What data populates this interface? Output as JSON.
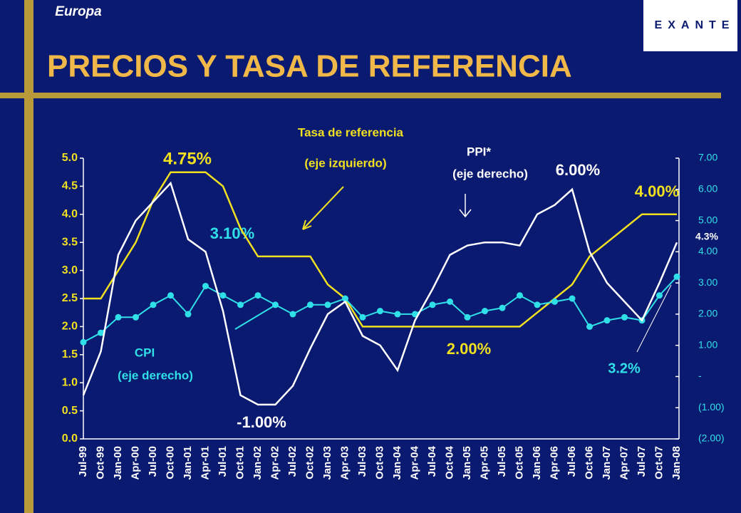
{
  "header": "Europa",
  "logo": "EXANTE",
  "chart_data": {
    "type": "line",
    "title": "PRECIOS Y TASA DE REFERENCIA",
    "categories": [
      "Jul-99",
      "Oct-99",
      "Jan-00",
      "Apr-00",
      "Jul-00",
      "Oct-00",
      "Jan-01",
      "Apr-01",
      "Jul-01",
      "Oct-01",
      "Jan-02",
      "Apr-02",
      "Jul-02",
      "Oct-02",
      "Jan-03",
      "Apr-03",
      "Jul-03",
      "Oct-03",
      "Jan-04",
      "Apr-04",
      "Jul-04",
      "Oct-04",
      "Jan-05",
      "Apr-05",
      "Jul-05",
      "Oct-05",
      "Jan-06",
      "Apr-06",
      "Jul-06",
      "Oct-06",
      "Jan-07",
      "Apr-07",
      "Jul-07",
      "Oct-07",
      "Jan-08"
    ],
    "series": [
      {
        "name": "Tasa de referencia",
        "color": "#f0e020",
        "axis": "y",
        "values": [
          2.5,
          2.5,
          3.0,
          3.5,
          4.25,
          4.75,
          4.75,
          4.75,
          4.5,
          3.75,
          3.25,
          3.25,
          3.25,
          3.25,
          2.75,
          2.5,
          2.0,
          2.0,
          2.0,
          2.0,
          2.0,
          2.0,
          2.0,
          2.0,
          2.0,
          2.0,
          2.25,
          2.5,
          2.75,
          3.25,
          3.5,
          3.75,
          4.0,
          4.0,
          4.0
        ]
      },
      {
        "name": "CPI",
        "color": "#30e0e8",
        "axis": "y2",
        "values": [
          1.1,
          1.4,
          1.9,
          1.9,
          2.3,
          2.6,
          2.0,
          2.9,
          2.6,
          2.3,
          2.6,
          2.3,
          2.0,
          2.3,
          2.3,
          2.5,
          1.9,
          2.1,
          2.0,
          2.0,
          2.3,
          2.4,
          1.9,
          2.1,
          2.2,
          2.6,
          2.3,
          2.4,
          2.5,
          1.6,
          1.8,
          1.9,
          1.8,
          2.6,
          3.2
        ]
      },
      {
        "name": "PPI*",
        "color": "#ffffff",
        "axis": "y2",
        "values": [
          -0.6,
          0.8,
          3.9,
          5.0,
          5.6,
          6.2,
          4.4,
          4.0,
          2.1,
          -0.6,
          -0.9,
          -0.9,
          -0.3,
          0.9,
          2.0,
          2.4,
          1.3,
          1.0,
          0.2,
          1.8,
          2.8,
          3.9,
          4.2,
          4.3,
          4.3,
          4.2,
          5.2,
          5.5,
          6.0,
          4.0,
          3.0,
          2.4,
          1.8,
          3.0,
          4.3
        ]
      }
    ],
    "ylim": [
      0,
      5
    ],
    "yticks": [
      {
        "value": 0,
        "label": "0.0"
      },
      {
        "value": 0.5,
        "label": "0.5"
      },
      {
        "value": 1,
        "label": "1.0"
      },
      {
        "value": 1.5,
        "label": "1.5"
      },
      {
        "value": 2,
        "label": "2.0"
      },
      {
        "value": 2.5,
        "label": "2.5"
      },
      {
        "value": 3,
        "label": "3.0"
      },
      {
        "value": 3.5,
        "label": "3.5"
      },
      {
        "value": 4,
        "label": "4.0"
      },
      {
        "value": 4.5,
        "label": "4.5"
      },
      {
        "value": 5,
        "label": "5.0"
      }
    ],
    "y2lim": [
      -2,
      7
    ],
    "y2ticks": [
      {
        "value": 7,
        "label": "7.00"
      },
      {
        "value": 6,
        "label": "6.00"
      },
      {
        "value": 5,
        "label": "5.00"
      },
      {
        "value": 4,
        "label": "4.00"
      },
      {
        "value": 3,
        "label": "3.00"
      },
      {
        "value": 2,
        "label": "2.00"
      },
      {
        "value": 1,
        "label": "1.00"
      },
      {
        "value": 0,
        "label": "-"
      },
      {
        "value": -1,
        "label": "(1.00)"
      },
      {
        "value": -2,
        "label": "(2.00)"
      }
    ],
    "annotations": [
      "4.75%",
      "3.10%",
      "-1.00%",
      "2.00%",
      "6.00%",
      "4.00%",
      "3.2%",
      "4.3%",
      "(eje izquierdo)",
      "(eje derecho)",
      "(eje derecho)"
    ]
  }
}
